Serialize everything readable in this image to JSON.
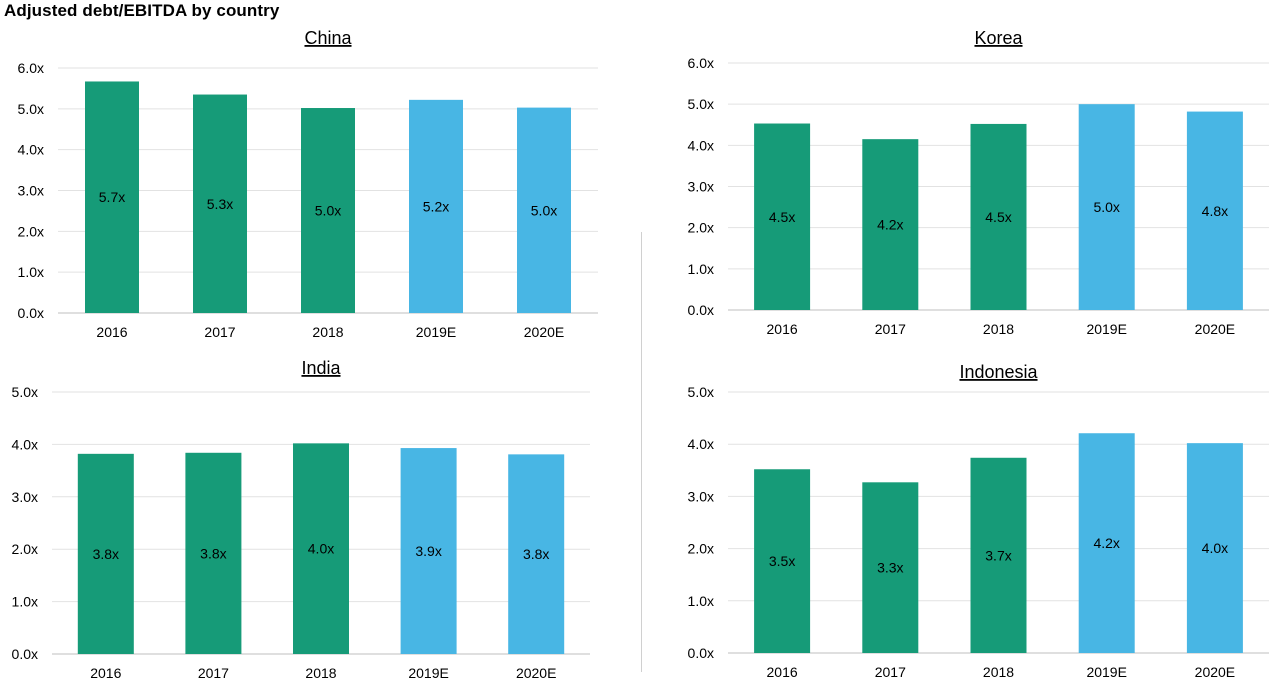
{
  "page": {
    "title": "Adjusted debt/EBITDA by country"
  },
  "colors": {
    "actual": "#169b78",
    "estimate": "#48b6e4"
  },
  "chart_data": [
    {
      "type": "bar",
      "title": "China",
      "categories": [
        "2016",
        "2017",
        "2018",
        "2019E",
        "2020E"
      ],
      "values": [
        5.67,
        5.35,
        5.02,
        5.22,
        5.03
      ],
      "data_labels": [
        "5.7x",
        "5.3x",
        "5.0x",
        "5.2x",
        "5.0x"
      ],
      "estimate_flags": [
        false,
        false,
        false,
        true,
        true
      ],
      "ylim": [
        0,
        6
      ],
      "yticks": [
        "0.0x",
        "1.0x",
        "2.0x",
        "3.0x",
        "4.0x",
        "5.0x",
        "6.0x"
      ],
      "grid": true
    },
    {
      "type": "bar",
      "title": "Korea",
      "categories": [
        "2016",
        "2017",
        "2018",
        "2019E",
        "2020E"
      ],
      "values": [
        4.53,
        4.15,
        4.52,
        5.0,
        4.82
      ],
      "data_labels": [
        "4.5x",
        "4.2x",
        "4.5x",
        "5.0x",
        "4.8x"
      ],
      "estimate_flags": [
        false,
        false,
        false,
        true,
        true
      ],
      "ylim": [
        0,
        6
      ],
      "yticks": [
        "0.0x",
        "1.0x",
        "2.0x",
        "3.0x",
        "4.0x",
        "5.0x",
        "6.0x"
      ],
      "grid": true
    },
    {
      "type": "bar",
      "title": "India",
      "categories": [
        "2016",
        "2017",
        "2018",
        "2019E",
        "2020E"
      ],
      "values": [
        3.82,
        3.84,
        4.02,
        3.93,
        3.81
      ],
      "data_labels": [
        "3.8x",
        "3.8x",
        "4.0x",
        "3.9x",
        "3.8x"
      ],
      "estimate_flags": [
        false,
        false,
        false,
        true,
        true
      ],
      "ylim": [
        0,
        5
      ],
      "yticks": [
        "0.0x",
        "1.0x",
        "2.0x",
        "3.0x",
        "4.0x",
        "5.0x"
      ],
      "grid": true
    },
    {
      "type": "bar",
      "title": "Indonesia",
      "categories": [
        "2016",
        "2017",
        "2018",
        "2019E",
        "2020E"
      ],
      "values": [
        3.52,
        3.27,
        3.74,
        4.21,
        4.02
      ],
      "data_labels": [
        "3.5x",
        "3.3x",
        "3.7x",
        "4.2x",
        "4.0x"
      ],
      "estimate_flags": [
        false,
        false,
        false,
        true,
        true
      ],
      "ylim": [
        0,
        5
      ],
      "yticks": [
        "0.0x",
        "1.0x",
        "2.0x",
        "3.0x",
        "4.0x",
        "5.0x"
      ],
      "grid": true
    }
  ]
}
